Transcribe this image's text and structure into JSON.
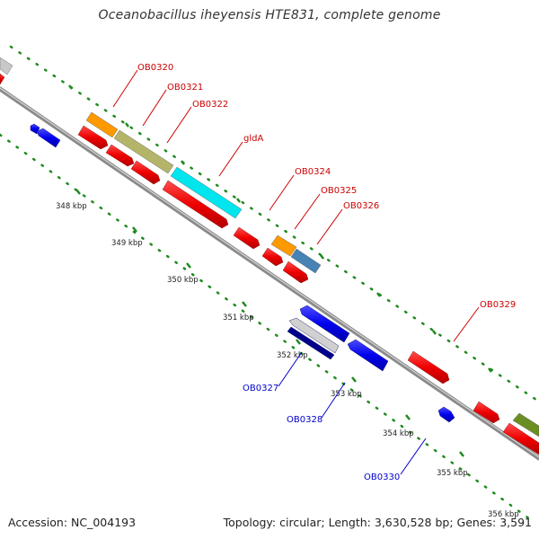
{
  "title": "Oceanobacillus iheyensis HTE831, complete genome",
  "footer": {
    "accession": "Accession: NC_004193",
    "topology": "Topology: circular; Length: 3,630,528 bp; Genes: 3,591"
  },
  "colors": {
    "backbone": "#8a8a8a",
    "ruler_dots": "#1f8a1f",
    "forward_label": "#cc0000",
    "reverse_label": "#0000cc",
    "cds_red": "#ee0000",
    "blue": "#0000ee",
    "orange": "#ff9900",
    "olive": "#b5b56a",
    "cyan": "#00e5ee",
    "steel": "#4682b4",
    "navy": "#00008b",
    "gray": "#c8c8c8",
    "green": "#6b8e23"
  },
  "kbp_ticks": [
    "348 kbp",
    "349 kbp",
    "350 kbp",
    "351 kbp",
    "352 kbp",
    "353 kbp",
    "354 kbp",
    "355 kbp",
    "356 kbp"
  ],
  "gene_labels": [
    {
      "id": "ob0320",
      "text": "OB0320",
      "strand": "forward"
    },
    {
      "id": "ob0321",
      "text": "OB0321",
      "strand": "forward"
    },
    {
      "id": "ob0322",
      "text": "OB0322",
      "strand": "forward"
    },
    {
      "id": "glda",
      "text": "gldA",
      "strand": "forward"
    },
    {
      "id": "ob0324",
      "text": "OB0324",
      "strand": "forward"
    },
    {
      "id": "ob0325",
      "text": "OB0325",
      "strand": "forward"
    },
    {
      "id": "ob0326",
      "text": "OB0326",
      "strand": "forward"
    },
    {
      "id": "ob0329",
      "text": "OB0329",
      "strand": "forward"
    },
    {
      "id": "ob0327",
      "text": "OB0327",
      "strand": "reverse"
    },
    {
      "id": "ob0328",
      "text": "OB0328",
      "strand": "reverse"
    },
    {
      "id": "ob0330",
      "text": "OB0330",
      "strand": "reverse"
    }
  ]
}
